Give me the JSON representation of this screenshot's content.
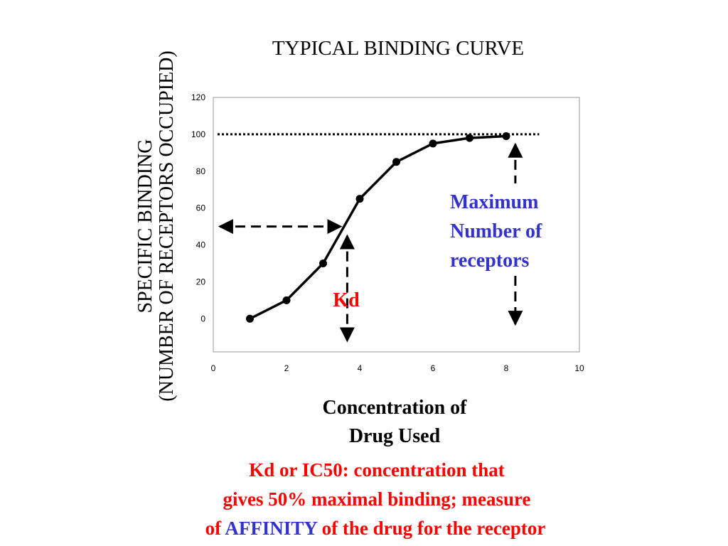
{
  "chart_data": {
    "type": "line",
    "title": "TYPICAL  BINDING  CURVE",
    "ylabel_line1": "SPECIFIC BINDING",
    "ylabel_line2": "(NUMBER OF RECEPTORS OCCUPIED)",
    "xlabel_line1": "Concentration of",
    "xlabel_line2": "Drug Used",
    "x": [
      1,
      2,
      3,
      4,
      5,
      6,
      7,
      8
    ],
    "series": [
      {
        "values": [
          0,
          10,
          30,
          65,
          85,
          95,
          98,
          99
        ]
      }
    ],
    "xlim": [
      0,
      10
    ],
    "ylim": [
      -18,
      120
    ],
    "x_ticks": [
      0,
      2,
      4,
      6,
      8,
      10
    ],
    "y_ticks": [
      0,
      20,
      40,
      60,
      80,
      100,
      120
    ],
    "grid": false,
    "reference_line_y": 100,
    "kd_x": 3.6,
    "kd_y": 50,
    "annotations": {
      "max_line1": "Maximum",
      "max_line2": "Number of",
      "max_line3": "receptors",
      "kd": "Kd"
    },
    "footer": {
      "line1": "Kd or IC50: concentration that",
      "line2": "gives 50% maximal binding; measure",
      "line3_prefix": "of ",
      "line3_highlight": "AFFINITY",
      "line3_suffix": " of the drug for the receptor"
    },
    "colors": {
      "blue": "#3333cc",
      "red": "#ff0000",
      "line": "#000000"
    }
  }
}
